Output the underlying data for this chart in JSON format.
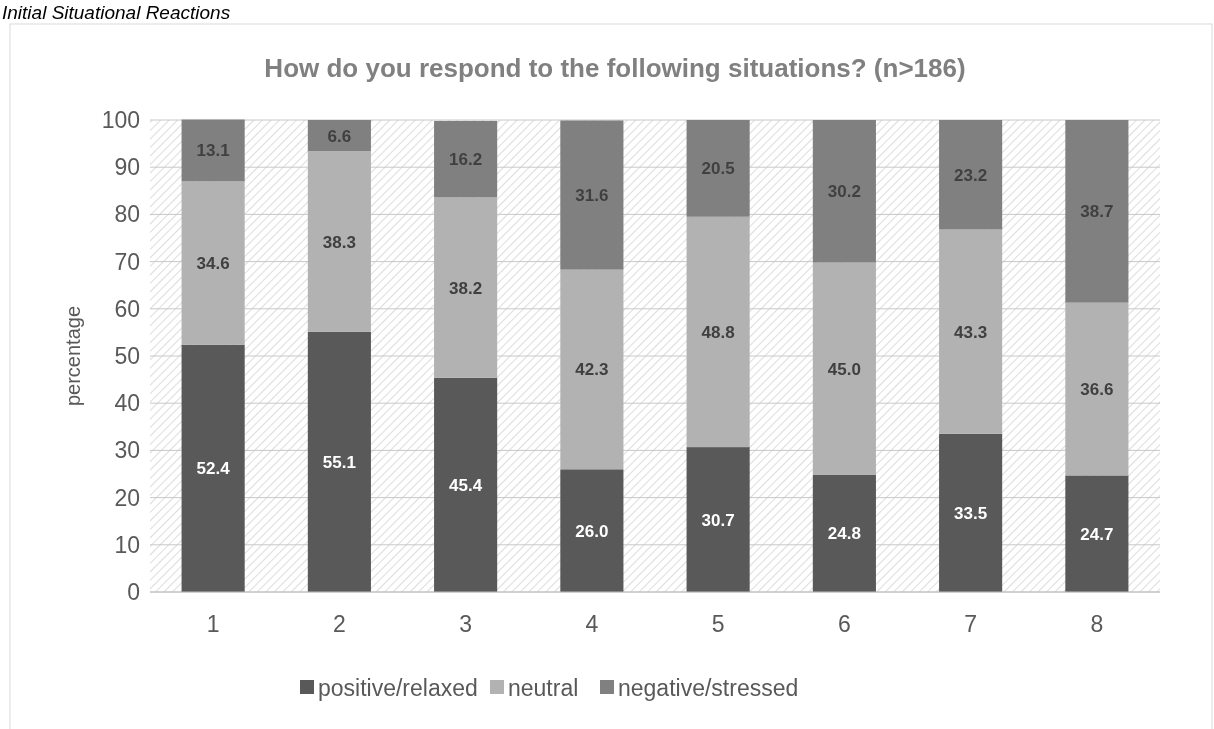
{
  "chart_data": {
    "type": "bar",
    "stacked": true,
    "title": "How do you respond to the following situations? (n>186)",
    "ylabel": "percentage",
    "annotations": [
      "Initial Situational Reactions"
    ],
    "categories": [
      "1",
      "2",
      "3",
      "4",
      "5",
      "6",
      "7",
      "8"
    ],
    "series": [
      {
        "name": "positive/relaxed",
        "color": "#595959",
        "values": [
          52.4,
          55.1,
          45.4,
          26.0,
          30.7,
          24.8,
          33.5,
          24.7
        ],
        "value_labels": [
          "52.4",
          "55.1",
          "45.4",
          "26.0",
          "30.7",
          "24.8",
          "33.5",
          "24.7"
        ]
      },
      {
        "name": "neutral",
        "color": "#b2b2b2",
        "values": [
          34.6,
          38.3,
          38.2,
          42.3,
          48.8,
          45.0,
          43.3,
          36.6
        ],
        "value_labels": [
          "34.6",
          "38.3",
          "38.2",
          "42.3",
          "48.8",
          "45.0",
          "43.3",
          "36.6"
        ]
      },
      {
        "name": "negative/stressed",
        "color": "#808080",
        "values": [
          13.1,
          6.6,
          16.2,
          31.6,
          20.5,
          30.2,
          23.2,
          38.7
        ],
        "value_labels": [
          "13.1",
          "6.6",
          "16.2",
          "31.6",
          "20.5",
          "30.2",
          "23.2",
          "38.7"
        ]
      }
    ],
    "ylim": [
      0,
      100
    ],
    "yticks": [
      0,
      10,
      20,
      30,
      40,
      50,
      60,
      70,
      80,
      90,
      100
    ],
    "grid": "y",
    "legend": "bottom"
  }
}
